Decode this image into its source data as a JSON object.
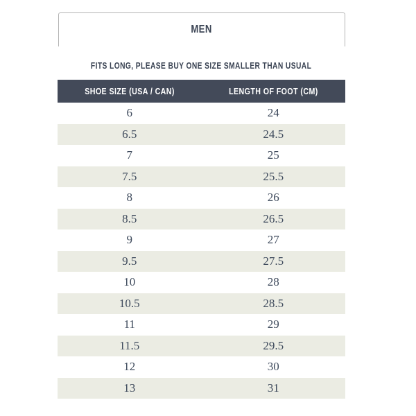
{
  "tab": {
    "label": "MEN"
  },
  "subtitle": "FITS LONG, PLEASE BUY ONE SIZE SMALLER THAN USUAL",
  "table": {
    "headers": [
      "SHOE SIZE (USA / CAN)",
      "LENGTH OF FOOT (CM)"
    ],
    "rows": [
      [
        "6",
        "24"
      ],
      [
        "6.5",
        "24.5"
      ],
      [
        "7",
        "25"
      ],
      [
        "7.5",
        "25.5"
      ],
      [
        "8",
        "26"
      ],
      [
        "8.5",
        "26.5"
      ],
      [
        "9",
        "27"
      ],
      [
        "9.5",
        "27.5"
      ],
      [
        "10",
        "28"
      ],
      [
        "10.5",
        "28.5"
      ],
      [
        "11",
        "29"
      ],
      [
        "11.5",
        "29.5"
      ],
      [
        "12",
        "30"
      ],
      [
        "13",
        "31"
      ]
    ]
  },
  "colors": {
    "header_bg": "#434a59",
    "row_alt_bg": "#ebece3",
    "heading_text": "#3b4454",
    "number_text": "#3e4a5c",
    "tab_border": "#b4b4b4",
    "header_text": "#ffffff"
  }
}
